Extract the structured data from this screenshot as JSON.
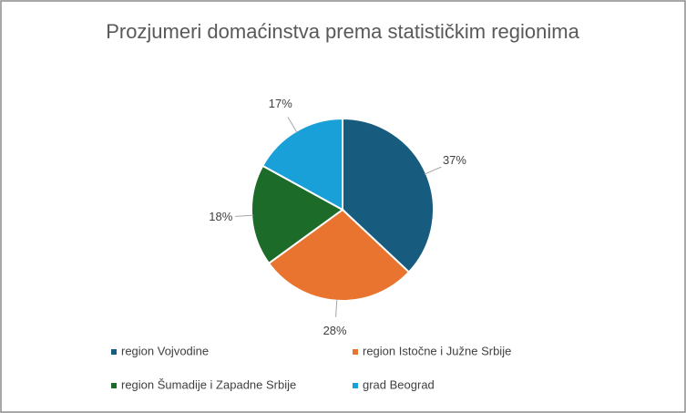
{
  "chart_data": {
    "type": "pie",
    "title": "Prozjumeri domaćinstva prema statističkim regionima",
    "categories": [
      "region Vojvodine",
      "region Istočne i Južne Srbije",
      "region Šumadije i Zapadne Srbije",
      "grad Beograd"
    ],
    "values": [
      37,
      28,
      18,
      17
    ],
    "value_labels": [
      "37%",
      "28%",
      "18%",
      "17%"
    ],
    "colors": [
      "#175b7e",
      "#e8742f",
      "#1d6b28",
      "#19a0d8"
    ],
    "legend": "bottom"
  }
}
